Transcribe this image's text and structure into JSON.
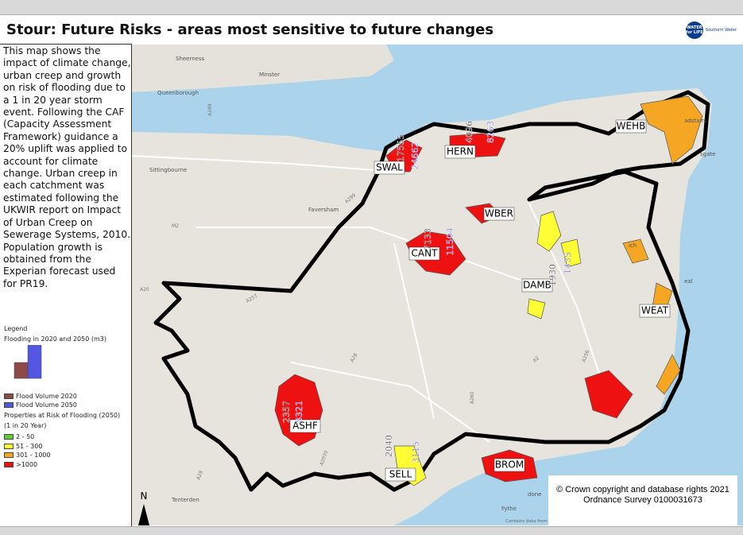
{
  "header": {
    "title": "Stour: Future Risks - areas most sensitive to future changes",
    "logo_mark": "WATER for LIFE",
    "logo_name": "Southern Water"
  },
  "description": "This map shows the impact of climate change, urban creep and growth on risk of flooding due to a 1 in 20 year storm event. Following the CAF (Capacity Assessment Framework) guidance a 20% uplift was applied to account for climate change. Urban creep in each catchment was estimated following the UKWIR report on Impact of Urban Creep on Sewerage Systems, 2010. Population growth is obtained from the Experian forecast used for PR19.",
  "legend": {
    "heading": "Legend",
    "flood_heading": "Flooding in 2020 and 2050 (m3)",
    "flood_items": [
      {
        "label": "Flood Volume 2020",
        "color": "#8c4a4a"
      },
      {
        "label": "Flood Volume 2050",
        "color": "#5256e0"
      }
    ],
    "class_heading": "Properties at Risk of Flooding (2050)",
    "class_subheading": "(1 in 20 Year)",
    "classes": [
      {
        "label": "2 - 50",
        "color": "#66cc33"
      },
      {
        "label": "51 - 300",
        "color": "#ffff33"
      },
      {
        "label": "301 - 1000",
        "color": "#f5a623"
      },
      {
        "label": ">1000",
        "color": "#ee1111"
      }
    ]
  },
  "map": {
    "catchments": [
      "WEHB",
      "SWAL",
      "HERN",
      "WBER",
      "CANT",
      "DAMB",
      "WEAT",
      "ASHF",
      "SELL",
      "BROM"
    ],
    "flood_labels": [
      {
        "catchment": "SWAL",
        "v2020": "17555",
        "v2050": "24662"
      },
      {
        "catchment": "HERN",
        "v2020": "4096",
        "v2050": "8263"
      },
      {
        "catchment": "CANT",
        "v2020": "7133",
        "v2050": "11504"
      },
      {
        "catchment": "DAMB",
        "v2020": "1930",
        "v2050": "1435"
      },
      {
        "catchment": "ASHF",
        "v2020": "2357",
        "v2050": "8321"
      },
      {
        "catchment": "SELL",
        "v2020": "2040",
        "v2050": "3115"
      }
    ],
    "places": [
      "Sheerness",
      "Minster",
      "Queenborough",
      "Sittingbourne",
      "Faversham",
      "Tenterden",
      "Fythe",
      "adstairs",
      "sgate",
      "ich",
      "eal",
      "done"
    ],
    "roads": [
      "A249",
      "A299",
      "M2",
      "A20",
      "A28",
      "A2",
      "A257",
      "A256",
      "A260",
      "A2070",
      "A28"
    ],
    "attribution": "Contains data from O",
    "north": "N",
    "copyright": [
      "© Crown copyright and database rights 2021",
      "Ordnance Survey 0100031673"
    ]
  }
}
